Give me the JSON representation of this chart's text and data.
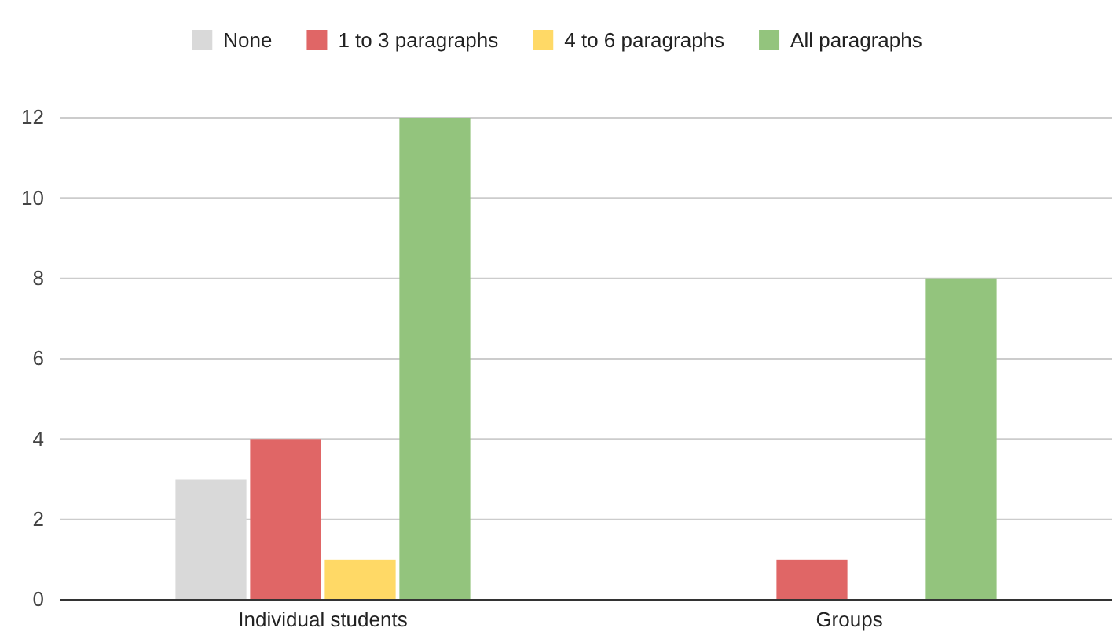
{
  "chart_data": {
    "type": "bar",
    "categories": [
      "Individual students",
      "Groups"
    ],
    "series": [
      {
        "name": "None",
        "color": "#d9d9d9",
        "values": [
          3,
          0
        ]
      },
      {
        "name": "1 to 3 paragraphs",
        "color": "#e06666",
        "values": [
          4,
          1
        ]
      },
      {
        "name": "4 to 6 paragraphs",
        "color": "#ffd966",
        "values": [
          1,
          0
        ]
      },
      {
        "name": "All paragraphs",
        "color": "#93c47d",
        "values": [
          12,
          8
        ]
      }
    ],
    "ylim": [
      0,
      12
    ],
    "yticks": [
      0,
      2,
      4,
      6,
      8,
      10,
      12
    ],
    "grid": "y",
    "legend": "top"
  }
}
